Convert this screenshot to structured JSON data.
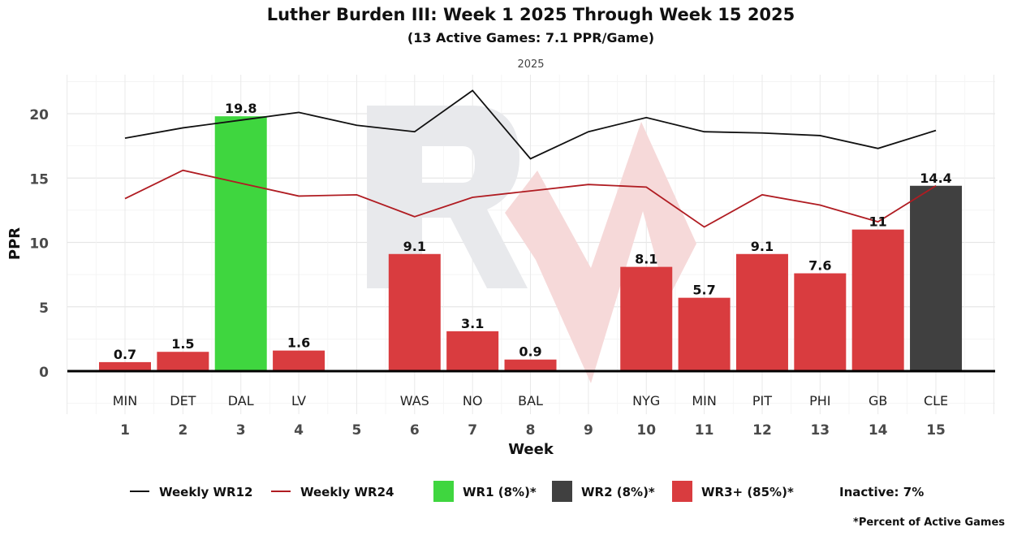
{
  "chart_data": {
    "type": "bar",
    "title": "Luther Burden III: Week 1 2025 Through Week 15 2025",
    "subtitle": "(13 Active Games: 7.1 PPR/Game)",
    "facet_label": "2025",
    "xlabel": "Week",
    "ylabel": "PPR",
    "ylim": [
      -3.3,
      23
    ],
    "yticks": [
      0,
      5,
      10,
      15,
      20
    ],
    "grid": true,
    "legend_position": "bottom",
    "categories": [
      "1",
      "2",
      "3",
      "4",
      "5",
      "6",
      "7",
      "8",
      "9",
      "10",
      "11",
      "12",
      "13",
      "14",
      "15"
    ],
    "opponents": [
      "MIN",
      "DET",
      "DAL",
      "LV",
      "",
      "WAS",
      "NO",
      "BAL",
      "",
      "NYG",
      "MIN",
      "PIT",
      "PHI",
      "GB",
      "CLE"
    ],
    "values": [
      0.7,
      1.5,
      19.8,
      1.6,
      null,
      9.1,
      3.1,
      0.9,
      null,
      8.1,
      5.7,
      9.1,
      7.6,
      11,
      14.4
    ],
    "value_labels": [
      "0.7",
      "1.5",
      "19.8",
      "1.6",
      "",
      "9.1",
      "3.1",
      "0.9",
      "",
      "8.1",
      "5.7",
      "9.1",
      "7.6",
      "11",
      "14.4"
    ],
    "tiers": [
      "WR3+",
      "WR3+",
      "WR1",
      "WR3+",
      "",
      "WR3+",
      "WR3+",
      "WR3+",
      "",
      "WR3+",
      "WR3+",
      "WR3+",
      "WR3+",
      "WR3+",
      "WR2"
    ],
    "series": [
      {
        "name": "Weekly WR12",
        "type": "line",
        "color": "#111111",
        "values": [
          18.1,
          18.9,
          19.5,
          20.1,
          19.1,
          18.6,
          21.8,
          16.5,
          18.6,
          19.7,
          18.6,
          18.5,
          18.3,
          17.3,
          18.7
        ]
      },
      {
        "name": "Weekly WR24",
        "type": "line",
        "color": "#b01c22",
        "values": [
          13.4,
          15.6,
          14.6,
          13.6,
          13.7,
          12.0,
          13.5,
          14.0,
          14.5,
          14.3,
          11.2,
          13.7,
          12.9,
          11.6,
          14.4
        ]
      }
    ],
    "tier_colors": {
      "WR1": "#3fd63f",
      "WR2": "#404040",
      "WR3+": "#d93c3f"
    },
    "legend": [
      {
        "type": "line",
        "label": "Weekly WR12",
        "color": "#111111"
      },
      {
        "type": "line",
        "label": "Weekly WR24",
        "color": "#b01c22"
      },
      {
        "type": "box",
        "label": "WR1 (8%)*",
        "color": "#3fd63f"
      },
      {
        "type": "box",
        "label": "WR2 (8%)*",
        "color": "#404040"
      },
      {
        "type": "box",
        "label": "WR3+ (85%)*",
        "color": "#d93c3f"
      },
      {
        "type": "text",
        "label": "Inactive: 7%"
      }
    ],
    "footnote": "*Percent of Active Games"
  }
}
